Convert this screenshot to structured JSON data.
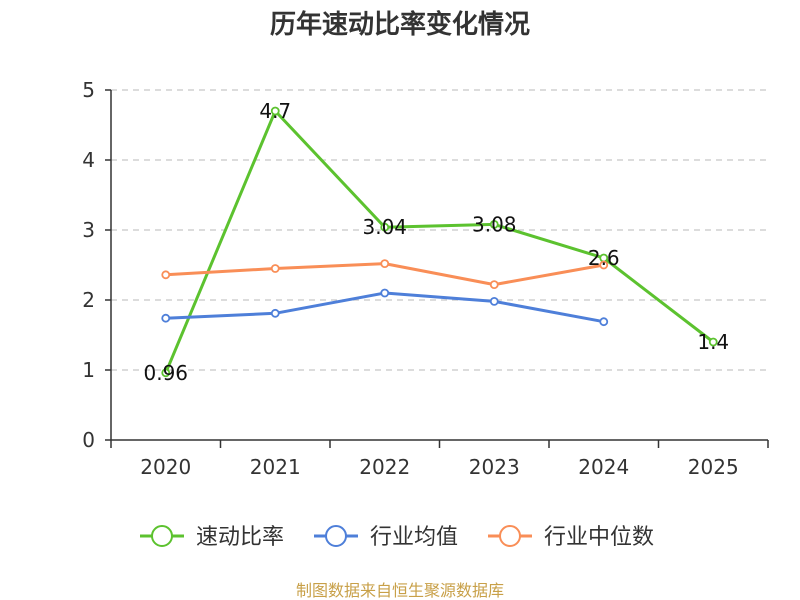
{
  "chart_data": {
    "type": "line",
    "title": "历年速动比率变化情况",
    "categories": [
      "2020",
      "2021",
      "2022",
      "2023",
      "2024",
      "2025"
    ],
    "ylim": [
      0,
      5
    ],
    "yticks": [
      0,
      1,
      2,
      3,
      4,
      5
    ],
    "grid": true,
    "legend_position": "bottom",
    "series": [
      {
        "name": "速动比率",
        "color": "#5cc22f",
        "values": [
          0.96,
          4.7,
          3.04,
          3.08,
          2.6,
          1.4
        ],
        "labels": [
          "0.96",
          "4.7",
          "3.04",
          "3.08",
          "2.6",
          "1.4"
        ]
      },
      {
        "name": "行业均值",
        "color": "#4e7fd9",
        "values": [
          1.74,
          1.81,
          2.1,
          1.98,
          1.69,
          null
        ]
      },
      {
        "name": "行业中位数",
        "color": "#f98e57",
        "values": [
          2.36,
          2.45,
          2.52,
          2.22,
          2.5,
          null
        ]
      }
    ],
    "source": "制图数据来自恒生聚源数据库"
  }
}
